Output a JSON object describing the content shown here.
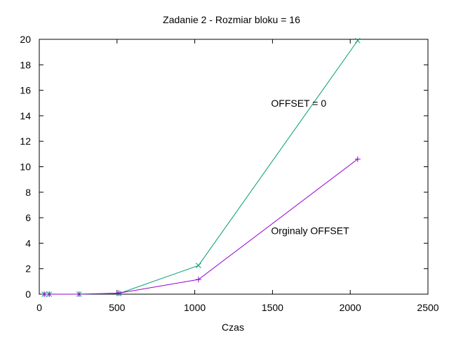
{
  "chart_data": {
    "type": "line",
    "title": "Zadanie 2 - Rozmiar bloku = 16",
    "xlabel": "Czas",
    "ylabel": "",
    "xlim": [
      0,
      2500
    ],
    "ylim": [
      0,
      20
    ],
    "xticks": [
      "0",
      "500",
      "1000",
      "1500",
      "2000",
      "2500"
    ],
    "yticks": [
      "0",
      "2",
      "4",
      "6",
      "8",
      "10",
      "12",
      "14",
      "16",
      "18",
      "20"
    ],
    "grid": false,
    "annotations": [
      {
        "text": "OFFSET = 0",
        "x": 1500,
        "y": 15
      },
      {
        "text": "Orginaly OFFSET",
        "x": 1500,
        "y": 5
      }
    ],
    "series": [
      {
        "label": "OFFSET = 0",
        "color": "#009e73",
        "marker": "x",
        "x": [
          32,
          64,
          256,
          512,
          1024,
          2048
        ],
        "y": [
          0.0,
          0.0,
          0.0,
          0.05,
          2.25,
          19.9
        ]
      },
      {
        "label": "Orginaly OFFSET",
        "color": "#9400d3",
        "marker": "plus",
        "x": [
          32,
          64,
          256,
          512,
          1024,
          2048
        ],
        "y": [
          0.0,
          0.0,
          0.0,
          0.08,
          1.15,
          10.6
        ]
      }
    ]
  }
}
